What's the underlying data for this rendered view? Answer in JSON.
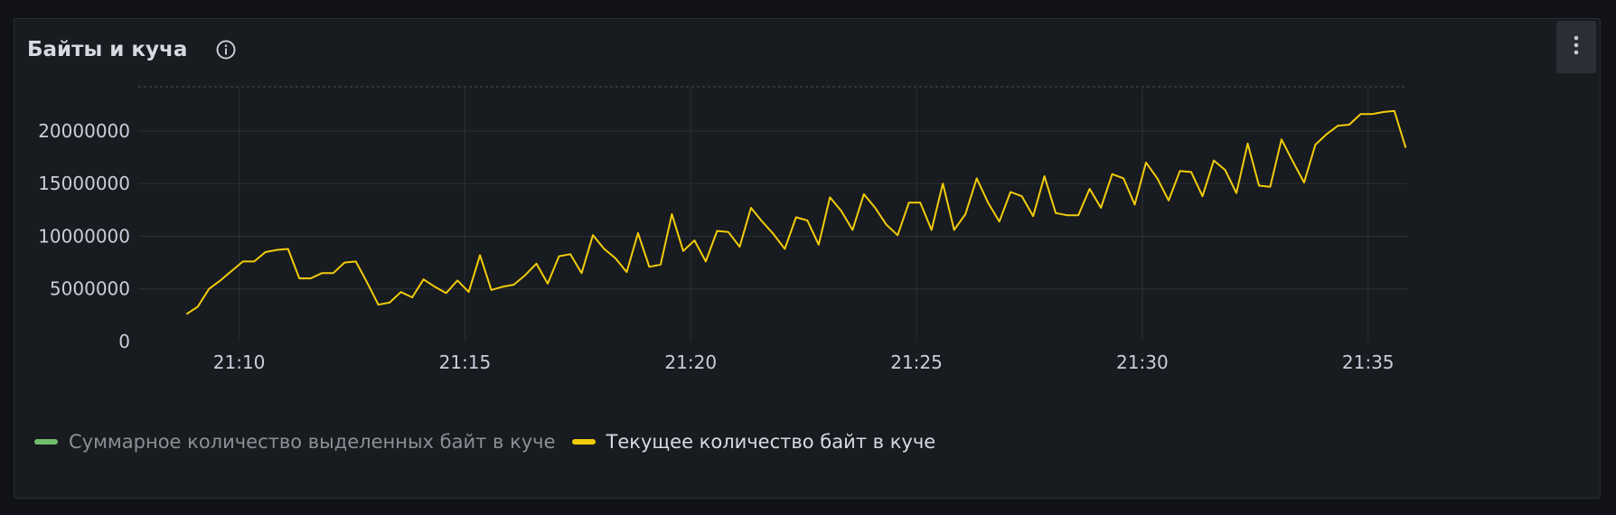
{
  "panel": {
    "title": "Байты и куча"
  },
  "icons": {
    "info": "info-circle-icon",
    "menu": "kebab-menu-icon"
  },
  "legend": [
    {
      "label": "Суммарное количество выделенных байт в куче",
      "color": "#73bf69",
      "state": "hidden"
    },
    {
      "label": "Текущее количество байт в куче",
      "color": "#f2cc0c",
      "state": "visible"
    }
  ],
  "chart_data": {
    "type": "line",
    "y_ticks": [
      0,
      5000000,
      10000000,
      15000000,
      20000000
    ],
    "y_tick_labels": [
      "0",
      "5000000",
      "10000000",
      "15000000",
      "20000000"
    ],
    "ylim": [
      0,
      24200000
    ],
    "x_range": [
      "21:07:46",
      "21:35:52"
    ],
    "x_ticks": [
      "21:10",
      "21:15",
      "21:20",
      "21:25",
      "21:30",
      "21:35"
    ],
    "grid": true,
    "series": [
      {
        "name": "Текущее количество байт в куче",
        "color": "#f2cc0c",
        "x": [
          "21:08:50",
          "21:09:05",
          "21:09:20",
          "21:09:35",
          "21:09:50",
          "21:10:05",
          "21:10:20",
          "21:10:35",
          "21:10:50",
          "21:11:05",
          "21:11:20",
          "21:11:35",
          "21:11:50",
          "21:12:05",
          "21:12:20",
          "21:12:35",
          "21:12:50",
          "21:13:05",
          "21:13:20",
          "21:13:35",
          "21:13:50",
          "21:14:05",
          "21:14:20",
          "21:14:35",
          "21:14:50",
          "21:15:05",
          "21:15:20",
          "21:15:35",
          "21:15:50",
          "21:16:05",
          "21:16:20",
          "21:16:35",
          "21:16:50",
          "21:17:05",
          "21:17:20",
          "21:17:35",
          "21:17:50",
          "21:18:05",
          "21:18:20",
          "21:18:35",
          "21:18:50",
          "21:19:05",
          "21:19:20",
          "21:19:35",
          "21:19:50",
          "21:20:05",
          "21:20:20",
          "21:20:35",
          "21:20:50",
          "21:21:05",
          "21:21:20",
          "21:21:35",
          "21:21:50",
          "21:22:05",
          "21:22:20",
          "21:22:35",
          "21:22:50",
          "21:23:05",
          "21:23:20",
          "21:23:35",
          "21:23:50",
          "21:24:05",
          "21:24:20",
          "21:24:35",
          "21:24:50",
          "21:25:05",
          "21:25:20",
          "21:25:35",
          "21:25:50",
          "21:26:05",
          "21:26:20",
          "21:26:35",
          "21:26:50",
          "21:27:05",
          "21:27:20",
          "21:27:35",
          "21:27:50",
          "21:28:05",
          "21:28:20",
          "21:28:35",
          "21:28:50",
          "21:29:05",
          "21:29:20",
          "21:29:35",
          "21:29:50",
          "21:30:05",
          "21:30:20",
          "21:30:35",
          "21:30:50",
          "21:31:05",
          "21:31:20",
          "21:31:35",
          "21:31:50",
          "21:32:05",
          "21:32:20",
          "21:32:35",
          "21:32:50",
          "21:33:05",
          "21:33:20",
          "21:33:35",
          "21:33:50",
          "21:34:05",
          "21:34:20",
          "21:34:35",
          "21:34:50",
          "21:35:05",
          "21:35:20",
          "21:35:35",
          "21:35:50"
        ],
        "values": [
          2600000,
          3300000,
          5000000,
          5800000,
          6700000,
          7600000,
          7600000,
          8500000,
          8700000,
          8800000,
          6000000,
          6000000,
          6500000,
          6500000,
          7500000,
          7600000,
          5600000,
          3500000,
          3700000,
          4700000,
          4200000,
          5900000,
          5200000,
          4600000,
          5800000,
          4700000,
          8200000,
          4900000,
          5200000,
          5400000,
          6300000,
          7400000,
          5500000,
          8100000,
          8300000,
          6500000,
          10100000,
          8800000,
          7900000,
          6600000,
          10300000,
          7100000,
          7300000,
          12100000,
          8600000,
          9600000,
          7600000,
          10500000,
          10400000,
          9000000,
          12700000,
          11400000,
          10200000,
          8800000,
          11800000,
          11500000,
          9200000,
          13700000,
          12400000,
          10600000,
          14000000,
          12700000,
          11100000,
          10100000,
          13200000,
          13200000,
          10600000,
          15000000,
          10600000,
          12100000,
          15500000,
          13200000,
          11400000,
          14200000,
          13800000,
          11900000,
          15700000,
          12200000,
          12000000,
          12000000,
          14500000,
          12700000,
          15900000,
          15500000,
          13000000,
          17000000,
          15500000,
          13400000,
          16200000,
          16100000,
          13800000,
          17200000,
          16300000,
          14100000,
          18800000,
          14800000,
          14700000,
          19200000,
          17100000,
          15100000,
          18700000,
          19700000,
          20500000,
          20600000,
          21600000,
          21600000,
          21800000,
          21900000,
          18400000
        ]
      }
    ]
  }
}
